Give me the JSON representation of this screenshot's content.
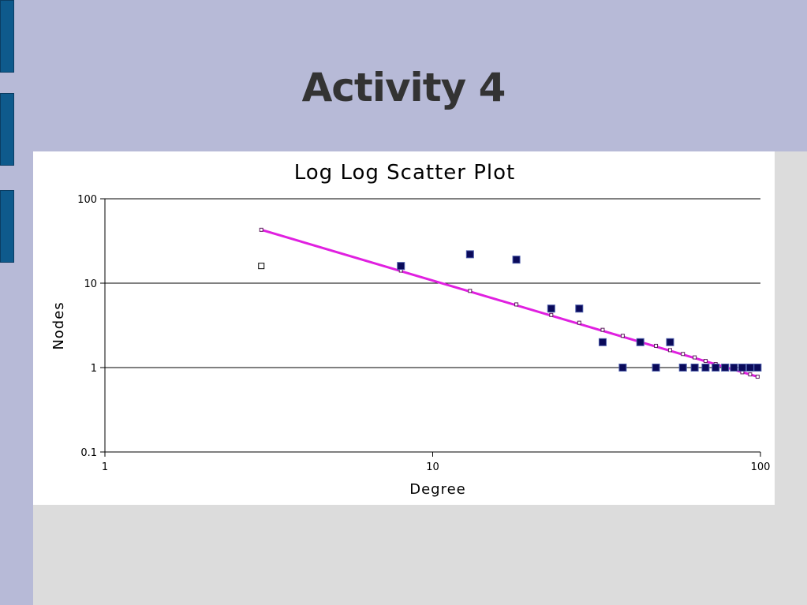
{
  "slide": {
    "title": "Activity 4",
    "background_color": "#b7bad7",
    "tab_color": "#0e5a8c",
    "tabs": [
      "tab",
      "tab",
      "tab"
    ]
  },
  "chart_data": {
    "type": "scatter",
    "title": "Log Log Scatter Plot",
    "xlabel": "Degree",
    "ylabel": "Nodes",
    "xscale": "log",
    "yscale": "log",
    "xlim": [
      1,
      100
    ],
    "ylim": [
      0.1,
      100
    ],
    "xticks": [
      "1",
      "10",
      "100"
    ],
    "yticks": [
      "0.1",
      "1",
      "10",
      "100"
    ],
    "grid": "horizontal",
    "legend": "none",
    "series": [
      {
        "marker": "filled-square",
        "color": "#0a0a5a",
        "x": [
          3,
          8,
          13,
          18,
          23,
          28,
          33,
          38,
          43,
          48,
          53,
          58,
          63,
          68,
          73,
          78,
          83,
          88,
          93,
          98
        ],
        "y": [
          16,
          16,
          22,
          19,
          5,
          5,
          2,
          1,
          2,
          1,
          2,
          1,
          1,
          1,
          1,
          1,
          1,
          1,
          1,
          1
        ],
        "first_point_marker": "hollow-square"
      },
      {
        "type": "trendline",
        "color": "#e020e0",
        "x": [
          3,
          8,
          13,
          18,
          23,
          28,
          33,
          38,
          43,
          48,
          53,
          58,
          63,
          68,
          73,
          78,
          83,
          88,
          93,
          98
        ],
        "y": [
          42.9,
          14.1,
          8.1,
          5.6,
          4.2,
          3.4,
          2.8,
          2.38,
          2.06,
          1.81,
          1.61,
          1.45,
          1.32,
          1.2,
          1.1,
          1.02,
          0.95,
          0.88,
          0.83,
          0.78
        ]
      }
    ]
  }
}
